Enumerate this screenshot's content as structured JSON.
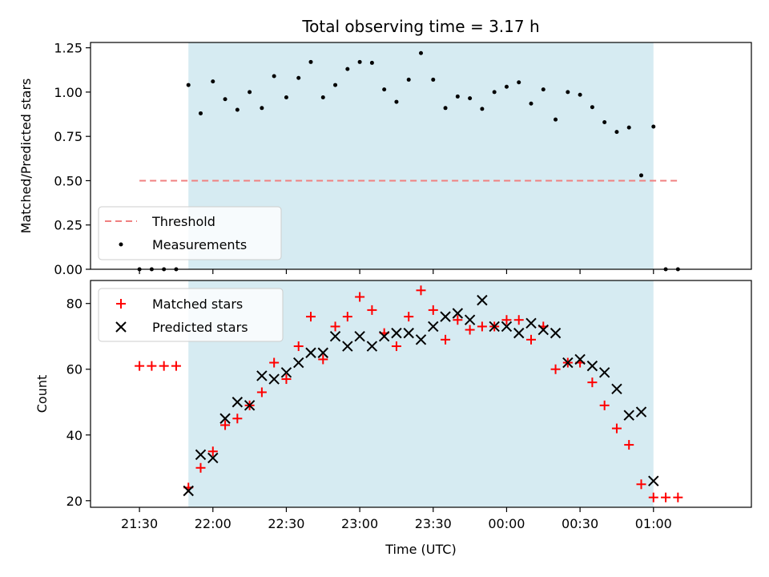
{
  "chart_data": [
    {
      "type": "scatter",
      "title": "Total observing time = 3.17 h",
      "xlabel": "",
      "ylabel": "Matched/Predicted stars",
      "ylim": [
        0,
        1.28
      ],
      "y_ticks": [
        0.0,
        0.25,
        0.5,
        0.75,
        1.0,
        1.25
      ],
      "y_tick_labels": [
        "0.00",
        "0.25",
        "0.50",
        "0.75",
        "1.00",
        "1.25"
      ],
      "x_range_minutes": [
        1270,
        1540
      ],
      "observing_window": {
        "start": "21:50",
        "end": "01:00",
        "color": "#add8e6"
      },
      "threshold": {
        "name": "Threshold",
        "value": 0.5,
        "x_start": "21:30",
        "x_end": "01:10",
        "color": "#f08080"
      },
      "series": [
        {
          "name": "Measurements",
          "color": "#000000",
          "x": [
            "21:30",
            "21:35",
            "21:40",
            "21:45",
            "21:50",
            "21:55",
            "22:00",
            "22:05",
            "22:10",
            "22:15",
            "22:20",
            "22:25",
            "22:30",
            "22:35",
            "22:40",
            "22:45",
            "22:50",
            "22:55",
            "23:00",
            "23:05",
            "23:10",
            "23:15",
            "23:20",
            "23:25",
            "23:30",
            "23:35",
            "23:40",
            "23:45",
            "23:50",
            "23:55",
            "00:00",
            "00:05",
            "00:10",
            "00:15",
            "00:20",
            "00:25",
            "00:30",
            "00:35",
            "00:40",
            "00:45",
            "00:50",
            "00:55",
            "01:00",
            "01:05",
            "01:10"
          ],
          "y": [
            0.0,
            0.0,
            0.0,
            0.0,
            1.04,
            0.88,
            1.06,
            0.96,
            0.9,
            1.0,
            0.91,
            1.09,
            0.97,
            1.08,
            1.17,
            0.97,
            1.04,
            1.13,
            1.17,
            1.165,
            1.015,
            0.945,
            1.07,
            1.22,
            1.07,
            0.91,
            0.975,
            0.965,
            0.905,
            1.0,
            1.03,
            1.055,
            0.935,
            1.015,
            0.845,
            1.0,
            0.985,
            0.915,
            0.83,
            0.775,
            0.8,
            0.53,
            0.805,
            0.0,
            0.0
          ]
        }
      ],
      "legend": {
        "position": "lower-left",
        "entries": [
          "Threshold",
          "Measurements"
        ]
      }
    },
    {
      "type": "scatter",
      "title": "",
      "xlabel": "Time (UTC)",
      "ylabel": "Count",
      "ylim": [
        18,
        87
      ],
      "y_ticks": [
        20,
        40,
        60,
        80
      ],
      "y_tick_labels": [
        "20",
        "40",
        "60",
        "80"
      ],
      "x_ticks": [
        "21:30",
        "22:00",
        "22:30",
        "23:00",
        "23:30",
        "00:00",
        "00:30",
        "01:00"
      ],
      "observing_window": {
        "start": "21:50",
        "end": "01:00",
        "color": "#add8e6"
      },
      "series": [
        {
          "name": "Matched stars",
          "marker": "plus",
          "color": "#ff0000",
          "x": [
            "21:30",
            "21:35",
            "21:40",
            "21:45",
            "21:50",
            "21:55",
            "22:00",
            "22:05",
            "22:10",
            "22:15",
            "22:20",
            "22:25",
            "22:30",
            "22:35",
            "22:40",
            "22:45",
            "22:50",
            "22:55",
            "23:00",
            "23:05",
            "23:10",
            "23:15",
            "23:20",
            "23:25",
            "23:30",
            "23:35",
            "23:40",
            "23:45",
            "23:50",
            "23:55",
            "00:00",
            "00:05",
            "00:10",
            "00:15",
            "00:20",
            "00:25",
            "00:30",
            "00:35",
            "00:40",
            "00:45",
            "00:50",
            "00:55",
            "01:00",
            "01:05",
            "01:10"
          ],
          "y": [
            61,
            61,
            61,
            61,
            24,
            30,
            35,
            43,
            45,
            49,
            53,
            62,
            57,
            67,
            76,
            63,
            73,
            76,
            82,
            78,
            71,
            67,
            76,
            84,
            78,
            69,
            75,
            72,
            73,
            73,
            75,
            75,
            69,
            73,
            60,
            62,
            62,
            56,
            49,
            42,
            37,
            25,
            21,
            21,
            21
          ]
        },
        {
          "name": "Predicted stars",
          "marker": "x",
          "color": "#000000",
          "x": [
            "21:50",
            "21:55",
            "22:00",
            "22:05",
            "22:10",
            "22:15",
            "22:20",
            "22:25",
            "22:30",
            "22:35",
            "22:40",
            "22:45",
            "22:50",
            "22:55",
            "23:00",
            "23:05",
            "23:10",
            "23:15",
            "23:20",
            "23:25",
            "23:30",
            "23:35",
            "23:40",
            "23:45",
            "23:50",
            "23:55",
            "00:00",
            "00:05",
            "00:10",
            "00:15",
            "00:20",
            "00:25",
            "00:30",
            "00:35",
            "00:40",
            "00:45",
            "00:50",
            "00:55",
            "01:00"
          ],
          "y": [
            23,
            34,
            33,
            45,
            50,
            49,
            58,
            57,
            59,
            62,
            65,
            65,
            70,
            67,
            70,
            67,
            70,
            71,
            71,
            69,
            73,
            76,
            77,
            75,
            81,
            73,
            73,
            71,
            74,
            72,
            71,
            62,
            63,
            61,
            59,
            54,
            46,
            47,
            26
          ]
        }
      ],
      "legend": {
        "position": "top-left",
        "entries": [
          "Matched stars",
          "Predicted stars"
        ]
      }
    }
  ]
}
